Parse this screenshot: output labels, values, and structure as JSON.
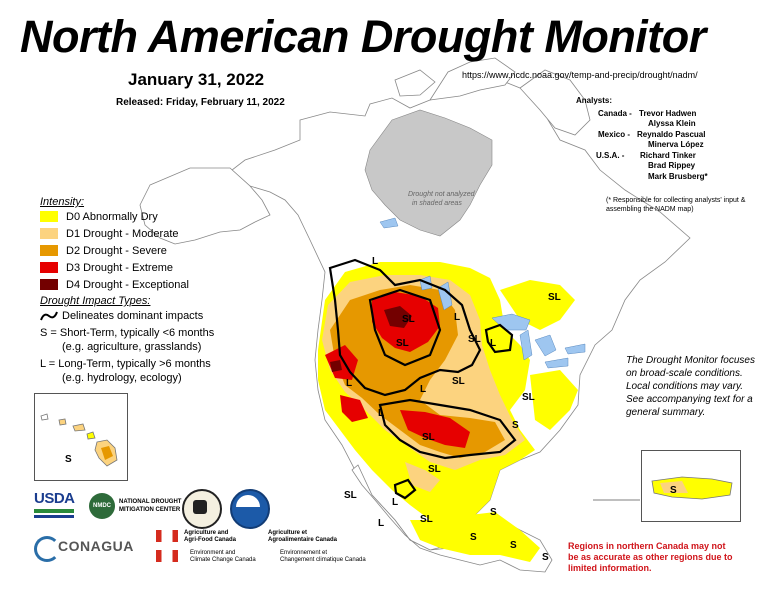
{
  "header": {
    "title": "North American Drought Monitor",
    "date": "January 31, 2022",
    "released": "Released: Friday, February 11, 2022",
    "url": "https://www.ncdc.noaa.gov/temp-and-precip/drought/nadm/"
  },
  "analysts": {
    "title": "Analysts:",
    "rows": [
      {
        "country": "Canada -",
        "name": "Trevor Hadwen"
      },
      {
        "country": "",
        "name": "Alyssa Klein"
      },
      {
        "country": "Mexico -",
        "name": "Reynaldo Pascual"
      },
      {
        "country": "",
        "name": "Minerva López"
      },
      {
        "country": "U.S.A. -",
        "name": "Richard Tinker"
      },
      {
        "country": "",
        "name": "Brad Rippey"
      },
      {
        "country": "",
        "name": "Mark Brusberg*"
      }
    ],
    "footnote": "(* Responsible for collecting analysts' input & assembling the NADM map)"
  },
  "legend": {
    "intensity_title": "Intensity:",
    "items": [
      {
        "label": "D0 Abnormally Dry",
        "color": "#ffff00"
      },
      {
        "label": "D1 Drought - Moderate",
        "color": "#fcd37f"
      },
      {
        "label": "D2 Drought - Severe",
        "color": "#e69800"
      },
      {
        "label": "D3 Drought - Extreme",
        "color": "#e60000"
      },
      {
        "label": "D4 Drought - Exceptional",
        "color": "#730000"
      }
    ],
    "impact_title": "Drought Impact Types:",
    "boundary_label": "Delineates dominant impacts",
    "short_term": "S = Short-Term, typically <6 months",
    "short_term_example": "(e.g. agriculture, grasslands)",
    "long_term": "L = Long-Term, typically >6 months",
    "long_term_example": "(e.g. hydrology, ecology)"
  },
  "map": {
    "no_analysis_note_1": "Drought not analyzed",
    "no_analysis_note_2": "in shaded areas",
    "labels": [
      {
        "text": "L"
      },
      {
        "text": "SL"
      },
      {
        "text": "SL"
      },
      {
        "text": "L"
      },
      {
        "text": "L"
      },
      {
        "text": "SL"
      },
      {
        "text": "SL"
      },
      {
        "text": "L"
      },
      {
        "text": "L"
      },
      {
        "text": "SL"
      },
      {
        "text": "SL"
      },
      {
        "text": "L"
      },
      {
        "text": "SL"
      },
      {
        "text": "SL"
      },
      {
        "text": "S"
      },
      {
        "text": "SL"
      },
      {
        "text": "L"
      },
      {
        "text": "S"
      },
      {
        "text": "S"
      },
      {
        "text": "S"
      },
      {
        "text": "S"
      },
      {
        "text": "SL"
      },
      {
        "text": "L"
      }
    ],
    "hawaii_label": "S",
    "puerto_rico_label": "S"
  },
  "notes": {
    "summary": "The Drought Monitor focuses on broad-scale conditions.  Local conditions may vary.  See accompanying text for a general summary.",
    "regions": "Regions in northern Canada may not be as accurate as other regions due to limited information."
  },
  "logos": {
    "usda": "USDA",
    "nidis": "NMDC",
    "nidis_text_1": "NATIONAL DROUGHT",
    "nidis_text_2": "MITIGATION CENTER",
    "conagua": "CONAGUA",
    "aafc_en_1": "Agriculture and",
    "aafc_en_2": "Agri-Food Canada",
    "aafc_fr_1": "Agriculture et",
    "aafc_fr_2": "Agroalimentaire Canada",
    "eccc_en_1": "Environment and",
    "eccc_en_2": "Climate Change Canada",
    "eccc_fr_1": "Environnement et",
    "eccc_fr_2": "Changement climatique Canada"
  },
  "colors": {
    "d0": "#ffff00",
    "d1": "#fcd37f",
    "d2": "#e69800",
    "d3": "#e60000",
    "d4": "#730000",
    "not_analyzed": "#c8c8c8",
    "water": "#9ec6f0",
    "regions_note": "#d0141a"
  }
}
